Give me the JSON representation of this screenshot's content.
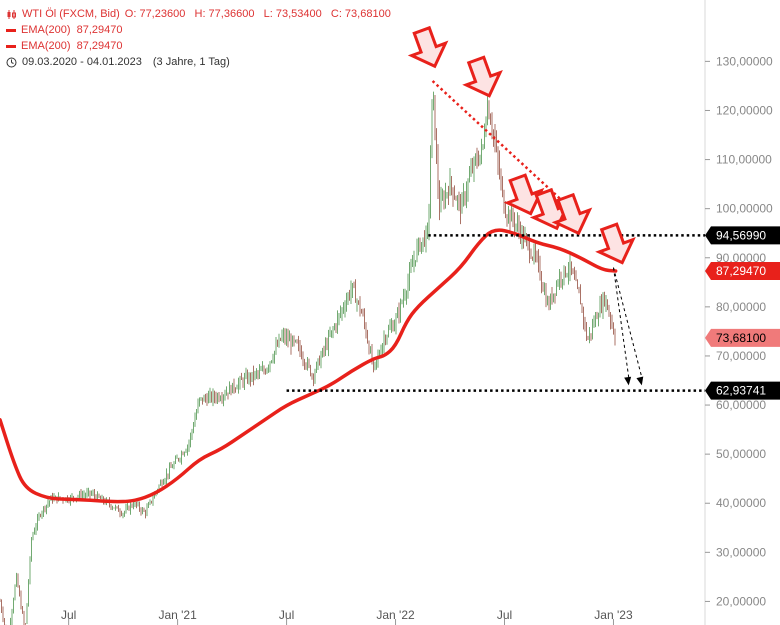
{
  "legend": {
    "instrument": "WTI Öl (FXCM, Bid)",
    "ohlc": "O: 77,23600   H: 77,36600   L: 73,53400   C: 73,68100",
    "ema1": "EMA(200)  87,29470",
    "ema2": "EMA(200)  87,29470",
    "range": "09.03.2020 - 04.01.2023",
    "span": "(3 Jahre, 1 Tag)"
  },
  "colors": {
    "ema": "#e8211b",
    "arrow_fill": "#fde3e3",
    "arrow_stroke": "#e8211b",
    "dotted": "#000000",
    "trendline": "#e8211b",
    "candle": "#2a7a2a",
    "price_tag_current": "#f07a7a",
    "price_tag_ema": "#e8211b",
    "price_tag_level": "#000000"
  },
  "chart_data": {
    "type": "candlestick",
    "y_axis_labels": [
      "130,00000",
      "120,00000",
      "110,00000",
      "100,00000",
      "90,00000",
      "80,00000",
      "70,00000",
      "60,00000",
      "50,00000",
      "40,00000",
      "30,00000",
      "20,00000"
    ],
    "y_ticks": [
      130,
      120,
      110,
      100,
      90,
      80,
      70,
      60,
      50,
      40,
      30,
      20
    ],
    "x_axis_labels": [
      "Jul",
      "Jan '21",
      "Jul",
      "Jan '22",
      "Jul",
      "Jan '23"
    ],
    "x_ticks": [
      2020.5,
      2021.0,
      2021.5,
      2022.0,
      2022.5,
      2023.0
    ],
    "xlim": [
      2020.185,
      2023.42
    ],
    "ylim": [
      15.2,
      142.5
    ],
    "price_path": [
      [
        2020.185,
        20
      ],
      [
        2020.22,
        12
      ],
      [
        2020.26,
        25
      ],
      [
        2020.3,
        14
      ],
      [
        2020.33,
        33
      ],
      [
        2020.37,
        38
      ],
      [
        2020.42,
        41
      ],
      [
        2020.5,
        41
      ],
      [
        2020.6,
        42
      ],
      [
        2020.68,
        40
      ],
      [
        2020.75,
        38
      ],
      [
        2020.8,
        40
      ],
      [
        2020.85,
        38
      ],
      [
        2020.92,
        44
      ],
      [
        2021.0,
        49
      ],
      [
        2021.05,
        52
      ],
      [
        2021.1,
        61
      ],
      [
        2021.2,
        62
      ],
      [
        2021.3,
        65
      ],
      [
        2021.4,
        67
      ],
      [
        2021.48,
        74
      ],
      [
        2021.55,
        72
      ],
      [
        2021.62,
        66
      ],
      [
        2021.68,
        72
      ],
      [
        2021.75,
        79
      ],
      [
        2021.8,
        84
      ],
      [
        2021.85,
        78
      ],
      [
        2021.9,
        67
      ],
      [
        2021.95,
        74
      ],
      [
        2022.0,
        77
      ],
      [
        2022.05,
        84
      ],
      [
        2022.1,
        92
      ],
      [
        2022.15,
        95
      ],
      [
        2022.17,
        125
      ],
      [
        2022.2,
        100
      ],
      [
        2022.25,
        105
      ],
      [
        2022.3,
        100
      ],
      [
        2022.35,
        108
      ],
      [
        2022.4,
        112
      ],
      [
        2022.42,
        122
      ],
      [
        2022.45,
        115
      ],
      [
        2022.5,
        100
      ],
      [
        2022.55,
        97
      ],
      [
        2022.6,
        93
      ],
      [
        2022.65,
        89
      ],
      [
        2022.7,
        80
      ],
      [
        2022.75,
        86
      ],
      [
        2022.8,
        88
      ],
      [
        2022.85,
        81
      ],
      [
        2022.88,
        73
      ],
      [
        2022.92,
        78
      ],
      [
        2022.96,
        82
      ],
      [
        2023.01,
        73.68
      ]
    ],
    "ema_path": [
      [
        2020.185,
        57
      ],
      [
        2020.25,
        48
      ],
      [
        2020.3,
        43
      ],
      [
        2020.4,
        41
      ],
      [
        2020.5,
        40.8
      ],
      [
        2020.6,
        40.6
      ],
      [
        2020.7,
        40.3
      ],
      [
        2020.8,
        40.4
      ],
      [
        2020.9,
        42
      ],
      [
        2021.0,
        45
      ],
      [
        2021.1,
        49
      ],
      [
        2021.2,
        51
      ],
      [
        2021.3,
        54
      ],
      [
        2021.4,
        57
      ],
      [
        2021.5,
        60
      ],
      [
        2021.6,
        62
      ],
      [
        2021.7,
        64
      ],
      [
        2021.8,
        67
      ],
      [
        2021.9,
        69.5
      ],
      [
        2021.95,
        70
      ],
      [
        2022.0,
        72
      ],
      [
        2022.05,
        77
      ],
      [
        2022.1,
        80
      ],
      [
        2022.2,
        84
      ],
      [
        2022.3,
        88
      ],
      [
        2022.38,
        93
      ],
      [
        2022.45,
        96
      ],
      [
        2022.55,
        95
      ],
      [
        2022.65,
        93
      ],
      [
        2022.75,
        92
      ],
      [
        2022.85,
        90
      ],
      [
        2022.95,
        87.5
      ],
      [
        2023.01,
        87.2947
      ]
    ],
    "horizontal_levels": [
      {
        "y": 94.5699,
        "label": "94,56990",
        "x_start": 2022.15
      },
      {
        "y": 62.93741,
        "label": "62,93741",
        "x_start": 2021.5
      }
    ],
    "ema_value": {
      "y": 87.2947,
      "label": "87,29470"
    },
    "last_price": {
      "y": 73.681,
      "label": "73,68100"
    },
    "trendline": [
      [
        2022.17,
        126
      ],
      [
        2022.78,
        101
      ]
    ],
    "forecast_arrows": [
      [
        [
          2023.0,
          88
        ],
        [
          2023.07,
          64
        ]
      ],
      [
        [
          2023.0,
          88
        ],
        [
          2023.13,
          64
        ]
      ]
    ],
    "down_arrows": [
      {
        "x": 2022.18,
        "y": 129
      },
      {
        "x": 2022.43,
        "y": 123
      },
      {
        "x": 2022.62,
        "y": 99
      },
      {
        "x": 2022.74,
        "y": 96
      },
      {
        "x": 2022.84,
        "y": 95
      },
      {
        "x": 2023.04,
        "y": 89
      }
    ]
  }
}
